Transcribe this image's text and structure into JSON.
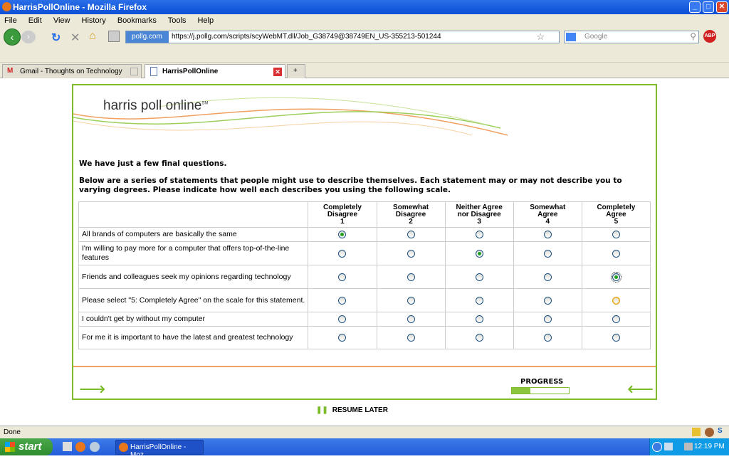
{
  "window": {
    "title": "HarrisPollOnline - Mozilla Firefox"
  },
  "menu": [
    "File",
    "Edit",
    "View",
    "History",
    "Bookmarks",
    "Tools",
    "Help"
  ],
  "address": {
    "site": "pollg.com",
    "url": "https://j.pollg.com/scripts/scyWebMT.dll/Job_G38749@38749EN_US-355213-501244"
  },
  "search": {
    "placeholder": "Google"
  },
  "tabs": [
    {
      "label": "Gmail - Thoughts on Technology",
      "active": false
    },
    {
      "label": "HarrisPollOnline",
      "active": true
    }
  ],
  "logo": {
    "text": "harris poll online",
    "mark": "SM"
  },
  "survey": {
    "intro": "We have just a few final questions.",
    "instructions": "Below are a series of statements that people might use to describe themselves. Each statement may or may not describe you to varying degrees. Please indicate how well each describes you using the following scale.",
    "scale": [
      {
        "label": "Completely Disagree",
        "value": "1"
      },
      {
        "label": "Somewhat Disagree",
        "value": "2"
      },
      {
        "label": "Neither Agree nor Disagree",
        "value": "3"
      },
      {
        "label": "Somewhat Agree",
        "value": "4"
      },
      {
        "label": "Completely Agree",
        "value": "5"
      }
    ],
    "statements": [
      {
        "text": "All brands of computers are basically the same",
        "selected": 1
      },
      {
        "text": "I'm willing to pay more for a computer that offers top-of-the-line features",
        "selected": 3
      },
      {
        "text": "Friends and colleagues seek my opinions regarding technology",
        "selected": 5
      },
      {
        "text": "Please select \"5: Completely Agree\" on the scale for this statement.",
        "selected": null
      },
      {
        "text": "I couldn't get by without my computer",
        "selected": null
      },
      {
        "text": "For me it is important to have the latest and greatest technology",
        "selected": null
      }
    ]
  },
  "progress": {
    "label": "PROGRESS",
    "percent": 33
  },
  "resume": {
    "label": "RESUME LATER"
  },
  "accent": "#7cbb2a",
  "status": "Done",
  "taskbar": {
    "start": "start",
    "window": "HarrisPollOnline - Moz...",
    "clock": "12:19 PM"
  }
}
